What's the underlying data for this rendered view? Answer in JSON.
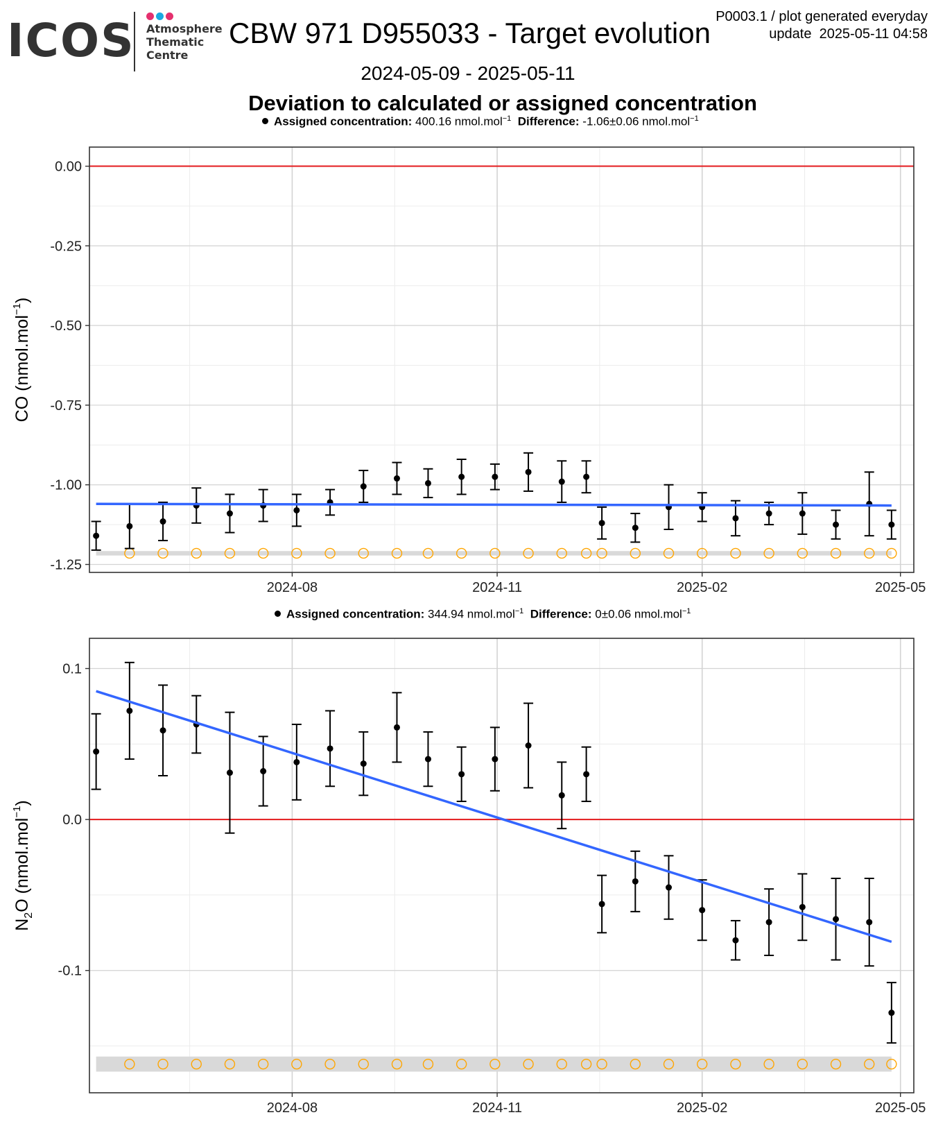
{
  "header": {
    "logo_text": "ICOS",
    "logo_subtitle": [
      "Atmosphere",
      "Thematic",
      "Centre"
    ],
    "logo_dot_colors": [
      "#e5306e",
      "#1ca9e1",
      "#e5306e"
    ],
    "title": "CBW 971 D955033 - Target evolution",
    "info_line1": "P0003.1 / plot generated everyday",
    "info_line2": "update  2025-05-11 04:58",
    "date_range": "2024-05-09 - 2025-05-11",
    "subtitle": "Deviation to calculated or assigned concentration"
  },
  "colors": {
    "zero_line": "#e31a1c",
    "trend_line": "#3366ff",
    "points": "#000000",
    "marker_circle": "#ffa500",
    "band": "#d9d9d9",
    "grid_major": "#d3d3d3",
    "grid_minor": "#ececec"
  },
  "chart_data": [
    {
      "type": "scatter",
      "species": "CO",
      "legend": {
        "assigned_label": "Assigned concentration:",
        "assigned_value": "400.16 nmol.mol",
        "exp": "−1",
        "difference_label": "Difference:",
        "difference_value": "-1.06±0.06 nmol.mol",
        "diff_exp": "−1"
      },
      "ylabel_main": "CO (nmol.mol",
      "ylabel_sub": "",
      "ylabel_sup": "−1",
      "ylabel_end": ")",
      "ylim": [
        -1.275,
        0.06
      ],
      "yticks": [
        0.0,
        -0.25,
        -0.5,
        -0.75,
        -1.0,
        -1.25
      ],
      "ytick_labels": [
        "0.00",
        "-0.25",
        "-0.50",
        "-0.75",
        "-1.00",
        "-1.25"
      ],
      "xlim": [
        "2024-05-02",
        "2025-05-07"
      ],
      "xticks": [
        "2024-08-01",
        "2024-11-01",
        "2025-02-01",
        "2025-05-01"
      ],
      "xtick_labels": [
        "2024-08",
        "2024-11",
        "2025-02",
        "2025-05"
      ],
      "reference_line": 0.0,
      "points": [
        {
          "date": "2024-05-05",
          "y": -1.16,
          "err": 0.045
        },
        {
          "date": "2024-05-20",
          "y": -1.13,
          "err": 0.07
        },
        {
          "date": "2024-06-04",
          "y": -1.115,
          "err": 0.06
        },
        {
          "date": "2024-06-19",
          "y": -1.065,
          "err": 0.055
        },
        {
          "date": "2024-07-04",
          "y": -1.09,
          "err": 0.06
        },
        {
          "date": "2024-07-19",
          "y": -1.065,
          "err": 0.05
        },
        {
          "date": "2024-08-03",
          "y": -1.08,
          "err": 0.05
        },
        {
          "date": "2024-08-18",
          "y": -1.055,
          "err": 0.04
        },
        {
          "date": "2024-09-02",
          "y": -1.005,
          "err": 0.05
        },
        {
          "date": "2024-09-17",
          "y": -0.98,
          "err": 0.05
        },
        {
          "date": "2024-10-01",
          "y": -0.995,
          "err": 0.045
        },
        {
          "date": "2024-10-16",
          "y": -0.975,
          "err": 0.055
        },
        {
          "date": "2024-10-31",
          "y": -0.975,
          "err": 0.04
        },
        {
          "date": "2024-11-15",
          "y": -0.96,
          "err": 0.06
        },
        {
          "date": "2024-11-30",
          "y": -0.99,
          "err": 0.065
        },
        {
          "date": "2024-12-11",
          "y": -0.975,
          "err": 0.05
        },
        {
          "date": "2024-12-18",
          "y": -1.12,
          "err": 0.05
        },
        {
          "date": "2025-01-02",
          "y": -1.135,
          "err": 0.045
        },
        {
          "date": "2025-01-17",
          "y": -1.07,
          "err": 0.07
        },
        {
          "date": "2025-02-01",
          "y": -1.07,
          "err": 0.045
        },
        {
          "date": "2025-02-16",
          "y": -1.105,
          "err": 0.055
        },
        {
          "date": "2025-03-03",
          "y": -1.09,
          "err": 0.035
        },
        {
          "date": "2025-03-18",
          "y": -1.09,
          "err": 0.065
        },
        {
          "date": "2025-04-02",
          "y": -1.125,
          "err": 0.045
        },
        {
          "date": "2025-04-17",
          "y": -1.06,
          "err": 0.1
        },
        {
          "date": "2025-04-27",
          "y": -1.125,
          "err": 0.045
        }
      ],
      "markers": {
        "y": -1.215,
        "dates": [
          "2024-05-20",
          "2024-06-04",
          "2024-06-19",
          "2024-07-04",
          "2024-07-19",
          "2024-08-03",
          "2024-08-18",
          "2024-09-02",
          "2024-09-17",
          "2024-10-01",
          "2024-10-16",
          "2024-10-31",
          "2024-11-15",
          "2024-11-30",
          "2024-12-11",
          "2024-12-18",
          "2025-01-02",
          "2025-01-17",
          "2025-02-01",
          "2025-02-16",
          "2025-03-03",
          "2025-03-18",
          "2025-04-02",
          "2025-04-17",
          "2025-04-27"
        ]
      },
      "band": {
        "start": "2024-05-05",
        "end": "2025-04-27",
        "y_low": -1.222,
        "y_high": -1.208
      },
      "trend": {
        "start": "2024-05-05",
        "y_start": -1.06,
        "end": "2025-04-27",
        "y_end": -1.065
      }
    },
    {
      "type": "scatter",
      "species": "N2O",
      "legend": {
        "assigned_label": "Assigned concentration:",
        "assigned_value": "344.94 nmol.mol",
        "exp": "−1",
        "difference_label": "Difference:",
        "difference_value": "0±0.06 nmol.mol",
        "diff_exp": "−1"
      },
      "ylabel_main": "N",
      "ylabel_sub": "2",
      "ylabel_sup": "−1",
      "ylabel_end": "O (nmol.mol",
      "ylim": [
        -0.181,
        0.12
      ],
      "yticks": [
        0.1,
        0.0,
        -0.1
      ],
      "ytick_labels": [
        "0.1",
        "0.0",
        "-0.1"
      ],
      "xlim": [
        "2024-05-02",
        "2025-05-07"
      ],
      "xticks": [
        "2024-08-01",
        "2024-11-01",
        "2025-02-01",
        "2025-05-01"
      ],
      "xtick_labels": [
        "2024-08",
        "2024-11",
        "2025-02",
        "2025-05"
      ],
      "reference_line": 0.0,
      "points": [
        {
          "date": "2024-05-05",
          "y": 0.045,
          "err": 0.025
        },
        {
          "date": "2024-05-20",
          "y": 0.072,
          "err": 0.032
        },
        {
          "date": "2024-06-04",
          "y": 0.059,
          "err": 0.03
        },
        {
          "date": "2024-06-19",
          "y": 0.063,
          "err": 0.019
        },
        {
          "date": "2024-07-04",
          "y": 0.031,
          "err": 0.04
        },
        {
          "date": "2024-07-19",
          "y": 0.032,
          "err": 0.023
        },
        {
          "date": "2024-08-03",
          "y": 0.038,
          "err": 0.025
        },
        {
          "date": "2024-08-18",
          "y": 0.047,
          "err": 0.025
        },
        {
          "date": "2024-09-02",
          "y": 0.037,
          "err": 0.021
        },
        {
          "date": "2024-09-17",
          "y": 0.061,
          "err": 0.023
        },
        {
          "date": "2024-10-01",
          "y": 0.04,
          "err": 0.018
        },
        {
          "date": "2024-10-16",
          "y": 0.03,
          "err": 0.018
        },
        {
          "date": "2024-10-31",
          "y": 0.04,
          "err": 0.021
        },
        {
          "date": "2024-11-15",
          "y": 0.049,
          "err": 0.028
        },
        {
          "date": "2024-11-30",
          "y": 0.016,
          "err": 0.022
        },
        {
          "date": "2024-12-11",
          "y": 0.03,
          "err": 0.018
        },
        {
          "date": "2024-12-18",
          "y": -0.056,
          "err": 0.019
        },
        {
          "date": "2025-01-02",
          "y": -0.041,
          "err": 0.02
        },
        {
          "date": "2025-01-17",
          "y": -0.045,
          "err": 0.021
        },
        {
          "date": "2025-02-01",
          "y": -0.06,
          "err": 0.02
        },
        {
          "date": "2025-02-16",
          "y": -0.08,
          "err": 0.013
        },
        {
          "date": "2025-03-03",
          "y": -0.068,
          "err": 0.022
        },
        {
          "date": "2025-03-18",
          "y": -0.058,
          "err": 0.022
        },
        {
          "date": "2025-04-02",
          "y": -0.066,
          "err": 0.027
        },
        {
          "date": "2025-04-17",
          "y": -0.068,
          "err": 0.029
        },
        {
          "date": "2025-04-27",
          "y": -0.128,
          "err": 0.02
        }
      ],
      "markers": {
        "y": -0.162,
        "dates": [
          "2024-05-20",
          "2024-06-04",
          "2024-06-19",
          "2024-07-04",
          "2024-07-19",
          "2024-08-03",
          "2024-08-18",
          "2024-09-02",
          "2024-09-17",
          "2024-10-01",
          "2024-10-16",
          "2024-10-31",
          "2024-11-15",
          "2024-11-30",
          "2024-12-11",
          "2024-12-18",
          "2025-01-02",
          "2025-01-17",
          "2025-02-01",
          "2025-02-16",
          "2025-03-03",
          "2025-03-18",
          "2025-04-02",
          "2025-04-17",
          "2025-04-27"
        ]
      },
      "band": {
        "start": "2024-05-05",
        "end": "2025-04-27",
        "y_low": -0.167,
        "y_high": -0.157
      },
      "trend": {
        "start": "2024-05-05",
        "y_start": 0.085,
        "end": "2025-04-27",
        "y_end": -0.081
      }
    }
  ]
}
